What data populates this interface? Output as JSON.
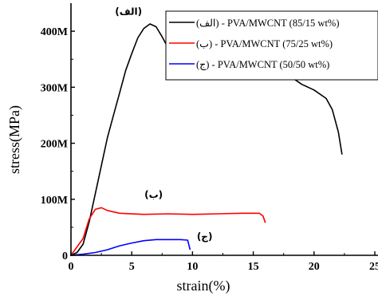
{
  "chart_data": {
    "type": "line",
    "xlabel": "strain(%)",
    "ylabel": "stress(MPa)",
    "xlim": [
      0,
      25
    ],
    "ylim": [
      0,
      450000000
    ],
    "x_ticks": [
      0,
      5,
      10,
      15,
      20,
      25
    ],
    "x_tick_labels": [
      "0",
      "5",
      "10",
      "15",
      "20",
      "25"
    ],
    "y_ticks": [
      0,
      100000000,
      200000000,
      300000000,
      400000000
    ],
    "y_tick_labels": [
      "0",
      "100M",
      "200M",
      "300M",
      "400M"
    ],
    "legend_position": "top-right",
    "series": [
      {
        "name": "(الف) - PVA/MWCNT (85/15 wt%)",
        "color": "#000000",
        "annotation": "(الف)",
        "points": [
          [
            0,
            0
          ],
          [
            0.5,
            5000000
          ],
          [
            1,
            20000000
          ],
          [
            1.5,
            60000000
          ],
          [
            2,
            110000000
          ],
          [
            2.5,
            160000000
          ],
          [
            3,
            210000000
          ],
          [
            3.5,
            250000000
          ],
          [
            4,
            290000000
          ],
          [
            4.5,
            330000000
          ],
          [
            5,
            360000000
          ],
          [
            5.5,
            388000000
          ],
          [
            6,
            405000000
          ],
          [
            6.5,
            413000000
          ],
          [
            7,
            408000000
          ],
          [
            7.5,
            390000000
          ],
          [
            8,
            370000000
          ],
          [
            9,
            355000000
          ],
          [
            10,
            345000000
          ],
          [
            11,
            340000000
          ],
          [
            12,
            336000000
          ],
          [
            13,
            333000000
          ],
          [
            14,
            330000000
          ],
          [
            15,
            328000000
          ],
          [
            16,
            327000000
          ],
          [
            17,
            325000000
          ],
          [
            18,
            320000000
          ],
          [
            19,
            305000000
          ],
          [
            20,
            295000000
          ],
          [
            21,
            280000000
          ],
          [
            21.5,
            260000000
          ],
          [
            22,
            220000000
          ],
          [
            22.3,
            180000000
          ]
        ]
      },
      {
        "name": "(ب) - PVA/MWCNT (75/25 wt%)",
        "color": "#ff0000",
        "annotation": "(ب)",
        "points": [
          [
            0,
            0
          ],
          [
            1,
            30000000
          ],
          [
            1.5,
            65000000
          ],
          [
            2,
            82000000
          ],
          [
            2.5,
            85000000
          ],
          [
            3,
            80000000
          ],
          [
            4,
            75000000
          ],
          [
            6,
            73000000
          ],
          [
            8,
            74000000
          ],
          [
            10,
            73000000
          ],
          [
            12,
            74000000
          ],
          [
            14,
            75000000
          ],
          [
            15.5,
            75000000
          ],
          [
            15.8,
            70000000
          ],
          [
            16,
            58000000
          ]
        ]
      },
      {
        "name": "(ج) - PVA/MWCNT (50/50 wt%)",
        "color": "#0000ff",
        "annotation": "(ج)",
        "points": [
          [
            0,
            0
          ],
          [
            1,
            2000000
          ],
          [
            2,
            5000000
          ],
          [
            3,
            10000000
          ],
          [
            4,
            17000000
          ],
          [
            5,
            22000000
          ],
          [
            6,
            26000000
          ],
          [
            7,
            28000000
          ],
          [
            8,
            28000000
          ],
          [
            9,
            28000000
          ],
          [
            9.6,
            27000000
          ],
          [
            9.8,
            10000000
          ]
        ]
      }
    ]
  }
}
